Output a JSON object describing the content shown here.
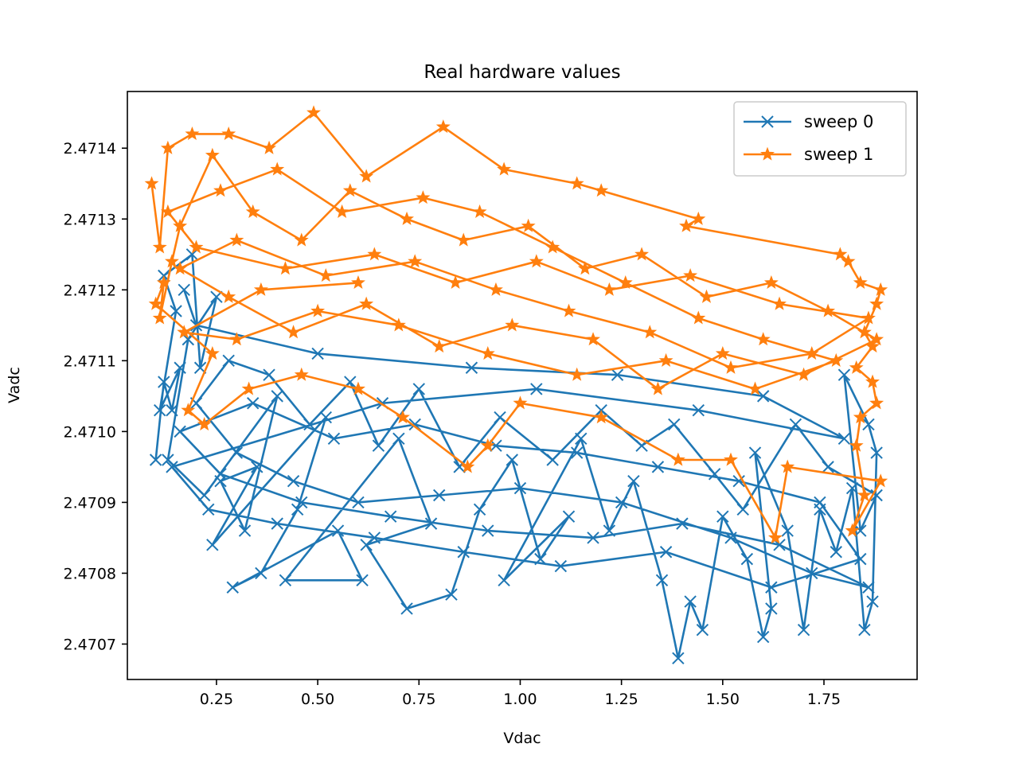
{
  "chart_data": {
    "type": "line",
    "title": "Real hardware values",
    "xlabel": "Vdac",
    "ylabel": "Vadc",
    "xlim": [
      0.03,
      1.98
    ],
    "ylim": [
      2.47065,
      2.47148
    ],
    "xticks": [
      {
        "value": 0.25,
        "label": "0.25"
      },
      {
        "value": 0.5,
        "label": "0.50"
      },
      {
        "value": 0.75,
        "label": "0.75"
      },
      {
        "value": 1.0,
        "label": "1.00"
      },
      {
        "value": 1.25,
        "label": "1.25"
      },
      {
        "value": 1.5,
        "label": "1.50"
      },
      {
        "value": 1.75,
        "label": "1.75"
      }
    ],
    "yticks": [
      {
        "value": 2.4707,
        "label": "2.4707"
      },
      {
        "value": 2.4708,
        "label": "2.4708"
      },
      {
        "value": 2.4709,
        "label": "2.4709"
      },
      {
        "value": 2.471,
        "label": "2.4710"
      },
      {
        "value": 2.4711,
        "label": "2.4711"
      },
      {
        "value": 2.4712,
        "label": "2.4712"
      },
      {
        "value": 2.4713,
        "label": "2.4713"
      },
      {
        "value": 2.4714,
        "label": "2.4714"
      }
    ],
    "grid": false,
    "legend_position": "top-right",
    "series": [
      {
        "name": "sweep 0",
        "color": "#1f77b4",
        "marker": "x",
        "points": [
          [
            0.1,
            2.47096
          ],
          [
            0.12,
            2.47107
          ],
          [
            0.14,
            2.47103
          ],
          [
            0.16,
            2.47109
          ],
          [
            0.11,
            2.47103
          ],
          [
            0.15,
            2.47117
          ],
          [
            0.12,
            2.47122
          ],
          [
            0.19,
            2.47125
          ],
          [
            0.21,
            2.47109
          ],
          [
            0.25,
            2.47119
          ],
          [
            0.18,
            2.47113
          ],
          [
            0.13,
            2.47096
          ],
          [
            0.22,
            2.47091
          ],
          [
            0.4,
            2.47105
          ],
          [
            0.32,
            2.47086
          ],
          [
            0.26,
            2.47093
          ],
          [
            0.35,
            2.47095
          ],
          [
            0.24,
            2.47084
          ],
          [
            0.52,
            2.47102
          ],
          [
            0.45,
            2.47089
          ],
          [
            0.36,
            2.4708
          ],
          [
            0.29,
            2.47078
          ],
          [
            0.55,
            2.47086
          ],
          [
            0.61,
            2.47079
          ],
          [
            0.42,
            2.47079
          ],
          [
            0.7,
            2.47099
          ],
          [
            0.78,
            2.47087
          ],
          [
            0.62,
            2.47084
          ],
          [
            0.72,
            2.47075
          ],
          [
            0.83,
            2.47077
          ],
          [
            0.9,
            2.47089
          ],
          [
            0.98,
            2.47096
          ],
          [
            1.05,
            2.47082
          ],
          [
            1.12,
            2.47088
          ],
          [
            0.96,
            2.47079
          ],
          [
            1.15,
            2.47099
          ],
          [
            1.22,
            2.47086
          ],
          [
            1.28,
            2.47093
          ],
          [
            1.35,
            2.47079
          ],
          [
            1.39,
            2.47068
          ],
          [
            1.42,
            2.47076
          ],
          [
            1.45,
            2.47072
          ],
          [
            1.5,
            2.47088
          ],
          [
            1.56,
            2.47082
          ],
          [
            1.6,
            2.47071
          ],
          [
            1.62,
            2.47075
          ],
          [
            1.58,
            2.47097
          ],
          [
            1.66,
            2.47086
          ],
          [
            1.7,
            2.47072
          ],
          [
            1.74,
            2.47089
          ],
          [
            1.78,
            2.47083
          ],
          [
            1.82,
            2.47092
          ],
          [
            1.85,
            2.47072
          ],
          [
            1.87,
            2.47076
          ],
          [
            1.88,
            2.47097
          ],
          [
            1.86,
            2.47101
          ],
          [
            1.8,
            2.47108
          ],
          [
            1.84,
            2.47086
          ],
          [
            1.88,
            2.47091
          ],
          [
            1.76,
            2.47095
          ],
          [
            1.68,
            2.47101
          ],
          [
            1.55,
            2.47089
          ],
          [
            1.48,
            2.47094
          ],
          [
            1.38,
            2.47101
          ],
          [
            1.3,
            2.47098
          ],
          [
            1.2,
            2.47103
          ],
          [
            1.08,
            2.47096
          ],
          [
            0.95,
            2.47102
          ],
          [
            0.85,
            2.47095
          ],
          [
            0.75,
            2.47106
          ],
          [
            0.65,
            2.47098
          ],
          [
            0.58,
            2.47107
          ],
          [
            0.48,
            2.47101
          ],
          [
            0.38,
            2.47108
          ],
          [
            0.28,
            2.4711
          ],
          [
            0.2,
            2.47104
          ],
          [
            0.3,
            2.47097
          ],
          [
            0.44,
            2.47093
          ],
          [
            0.6,
            2.4709
          ],
          [
            0.8,
            2.47091
          ],
          [
            1.0,
            2.47092
          ],
          [
            1.25,
            2.4709
          ],
          [
            1.52,
            2.47085
          ],
          [
            1.72,
            2.4708
          ],
          [
            1.86,
            2.47078
          ],
          [
            1.64,
            2.47084
          ],
          [
            1.4,
            2.47087
          ],
          [
            1.18,
            2.47085
          ],
          [
            0.92,
            2.47086
          ],
          [
            0.68,
            2.47088
          ],
          [
            0.46,
            2.4709
          ],
          [
            0.26,
            2.47094
          ],
          [
            0.16,
            2.471
          ],
          [
            0.34,
            2.47104
          ],
          [
            0.54,
            2.47099
          ],
          [
            0.74,
            2.47101
          ],
          [
            0.94,
            2.47098
          ],
          [
            1.14,
            2.47097
          ],
          [
            1.34,
            2.47095
          ],
          [
            1.54,
            2.47093
          ],
          [
            1.74,
            2.4709
          ],
          [
            1.84,
            2.47082
          ],
          [
            1.62,
            2.47078
          ],
          [
            1.36,
            2.47083
          ],
          [
            1.1,
            2.47081
          ],
          [
            0.86,
            2.47083
          ],
          [
            0.64,
            2.47085
          ],
          [
            0.4,
            2.47087
          ],
          [
            0.23,
            2.47089
          ],
          [
            0.14,
            2.47095
          ],
          [
            0.66,
            2.47104
          ],
          [
            1.04,
            2.47106
          ],
          [
            1.44,
            2.47103
          ],
          [
            1.8,
            2.47099
          ],
          [
            1.6,
            2.47105
          ],
          [
            1.24,
            2.47108
          ],
          [
            0.88,
            2.47109
          ],
          [
            0.5,
            2.47111
          ],
          [
            0.2,
            2.47115
          ],
          [
            0.17,
            2.4712
          ]
        ]
      },
      {
        "name": "sweep 1",
        "color": "#ff7f0e",
        "marker": "*",
        "points": [
          [
            0.09,
            2.47135
          ],
          [
            0.11,
            2.47126
          ],
          [
            0.13,
            2.4714
          ],
          [
            0.19,
            2.47142
          ],
          [
            0.28,
            2.47142
          ],
          [
            0.38,
            2.4714
          ],
          [
            0.49,
            2.47145
          ],
          [
            0.62,
            2.47136
          ],
          [
            0.81,
            2.47143
          ],
          [
            0.96,
            2.47137
          ],
          [
            1.14,
            2.47135
          ],
          [
            1.2,
            2.47134
          ],
          [
            1.44,
            2.4713
          ],
          [
            1.41,
            2.47129
          ],
          [
            1.79,
            2.47125
          ],
          [
            1.81,
            2.47124
          ],
          [
            1.84,
            2.47121
          ],
          [
            1.89,
            2.4712
          ],
          [
            1.88,
            2.47118
          ],
          [
            1.85,
            2.47114
          ],
          [
            1.87,
            2.47112
          ],
          [
            1.83,
            2.47109
          ],
          [
            1.87,
            2.47107
          ],
          [
            1.88,
            2.47104
          ],
          [
            1.84,
            2.47102
          ],
          [
            1.83,
            2.47098
          ],
          [
            1.85,
            2.47091
          ],
          [
            1.82,
            2.47086
          ],
          [
            1.89,
            2.47093
          ],
          [
            1.66,
            2.47095
          ],
          [
            1.63,
            2.47085
          ],
          [
            1.52,
            2.47096
          ],
          [
            1.39,
            2.47096
          ],
          [
            1.2,
            2.47102
          ],
          [
            1.0,
            2.47104
          ],
          [
            0.92,
            2.47098
          ],
          [
            0.87,
            2.47095
          ],
          [
            0.71,
            2.47102
          ],
          [
            0.6,
            2.47106
          ],
          [
            0.46,
            2.47108
          ],
          [
            0.33,
            2.47106
          ],
          [
            0.22,
            2.47101
          ],
          [
            0.18,
            2.47103
          ],
          [
            0.24,
            2.47111
          ],
          [
            0.1,
            2.47118
          ],
          [
            0.12,
            2.47121
          ],
          [
            0.11,
            2.47116
          ],
          [
            0.14,
            2.47124
          ],
          [
            0.16,
            2.47129
          ],
          [
            0.24,
            2.47139
          ],
          [
            0.34,
            2.47131
          ],
          [
            0.46,
            2.47127
          ],
          [
            0.58,
            2.47134
          ],
          [
            0.72,
            2.4713
          ],
          [
            0.86,
            2.47127
          ],
          [
            1.02,
            2.47129
          ],
          [
            1.16,
            2.47123
          ],
          [
            1.3,
            2.47125
          ],
          [
            1.46,
            2.47119
          ],
          [
            1.62,
            2.47121
          ],
          [
            1.76,
            2.47117
          ],
          [
            1.88,
            2.47113
          ],
          [
            1.7,
            2.47108
          ],
          [
            1.5,
            2.47111
          ],
          [
            1.34,
            2.47106
          ],
          [
            1.18,
            2.47113
          ],
          [
            0.98,
            2.47115
          ],
          [
            0.8,
            2.47112
          ],
          [
            0.62,
            2.47118
          ],
          [
            0.44,
            2.47114
          ],
          [
            0.28,
            2.47119
          ],
          [
            0.16,
            2.47123
          ],
          [
            0.3,
            2.47127
          ],
          [
            0.52,
            2.47122
          ],
          [
            0.74,
            2.47124
          ],
          [
            0.94,
            2.4712
          ],
          [
            1.12,
            2.47117
          ],
          [
            1.32,
            2.47114
          ],
          [
            1.52,
            2.47109
          ],
          [
            1.72,
            2.47111
          ],
          [
            1.86,
            2.47116
          ],
          [
            1.64,
            2.47118
          ],
          [
            1.42,
            2.47122
          ],
          [
            1.22,
            2.4712
          ],
          [
            1.04,
            2.47124
          ],
          [
            0.84,
            2.47121
          ],
          [
            0.64,
            2.47125
          ],
          [
            0.42,
            2.47123
          ],
          [
            0.2,
            2.47126
          ],
          [
            0.13,
            2.47131
          ],
          [
            0.26,
            2.47134
          ],
          [
            0.4,
            2.47137
          ],
          [
            0.56,
            2.47131
          ],
          [
            0.76,
            2.47133
          ],
          [
            0.9,
            2.47131
          ],
          [
            1.08,
            2.47126
          ],
          [
            1.26,
            2.47121
          ],
          [
            1.44,
            2.47116
          ],
          [
            1.6,
            2.47113
          ],
          [
            1.78,
            2.4711
          ],
          [
            1.58,
            2.47106
          ],
          [
            1.36,
            2.4711
          ],
          [
            1.14,
            2.47108
          ],
          [
            0.92,
            2.47111
          ],
          [
            0.7,
            2.47115
          ],
          [
            0.5,
            2.47117
          ],
          [
            0.3,
            2.47113
          ],
          [
            0.17,
            2.47114
          ],
          [
            0.36,
            2.4712
          ],
          [
            0.6,
            2.47121
          ]
        ]
      }
    ]
  }
}
